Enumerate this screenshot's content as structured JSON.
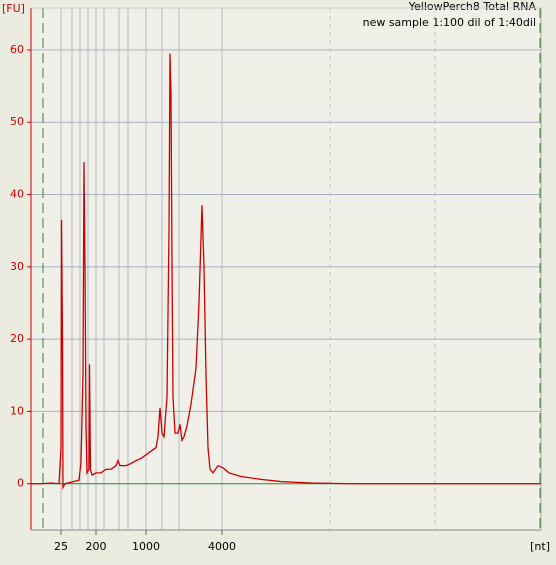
{
  "chart_data": {
    "type": "line",
    "title": "YellowPerch8 Total RNA",
    "subtitle": "new sample 1:100 dil of 1:40dil",
    "y_label": "[FU]",
    "x_label": "[nt]",
    "xlim": [
      18,
      69
    ],
    "ylim": [
      -6.4,
      65.8
    ],
    "xticks": [
      {
        "value": 21,
        "label": "25"
      },
      {
        "value": 24.5,
        "label": "200"
      },
      {
        "value": 29.5,
        "label": "1000"
      },
      {
        "value": 37.1,
        "label": "4000"
      }
    ],
    "x_gridlines": [
      21,
      22.1,
      22.9,
      23.7,
      24.5,
      25.3,
      26.8,
      27.7,
      29.5,
      31.1,
      32.8,
      37.1
    ],
    "x_dashed_gridlines": [
      47.9,
      58.4
    ],
    "markers": [
      19.2,
      68.9
    ],
    "yticks": [
      0,
      10,
      20,
      30,
      40,
      50,
      60
    ],
    "grid": true,
    "series": [
      {
        "color": "#cc0000",
        "x": [
          18,
          19,
          20,
          20.8,
          21,
          21.05,
          21.15,
          21.2,
          21.4,
          22,
          22.8,
          23,
          23.2,
          23.3,
          23.4,
          23.5,
          23.6,
          23.8,
          23.85,
          23.95,
          24.1,
          24.5,
          25,
          25.5,
          26,
          26.5,
          26.7,
          26.9,
          27.5,
          28,
          28.5,
          29,
          29.5,
          30,
          30.5,
          30.7,
          30.9,
          31.1,
          31.3,
          31.6,
          31.8,
          31.9,
          32,
          32.1,
          32.2,
          32.4,
          32.7,
          32.9,
          33.1,
          33.3,
          33.6,
          34,
          34.5,
          34.8,
          35.1,
          35.3,
          35.5,
          35.7,
          35.9,
          36.2,
          36.7,
          37.2,
          37.8,
          39,
          41,
          43,
          46,
          50,
          55,
          60,
          65,
          69
        ],
        "values": [
          0,
          0,
          0.1,
          0,
          5,
          36.5,
          20,
          -0.5,
          0,
          0.2,
          0.5,
          3,
          15,
          44.5,
          30,
          8,
          1.5,
          2,
          16.5,
          2,
          1.2,
          1.5,
          1.5,
          2,
          2,
          2.5,
          3.2,
          2.5,
          2.5,
          2.8,
          3.2,
          3.5,
          4,
          4.5,
          5,
          6.5,
          10.5,
          7,
          6.5,
          12,
          35,
          59.5,
          54,
          30,
          12,
          7,
          7,
          8.2,
          6,
          6.5,
          8,
          11,
          16,
          25,
          38.5,
          30,
          15,
          5,
          2,
          1.5,
          2.5,
          2.2,
          1.5,
          1,
          0.6,
          0.3,
          0.1,
          0,
          0,
          0,
          0,
          0
        ]
      }
    ]
  }
}
